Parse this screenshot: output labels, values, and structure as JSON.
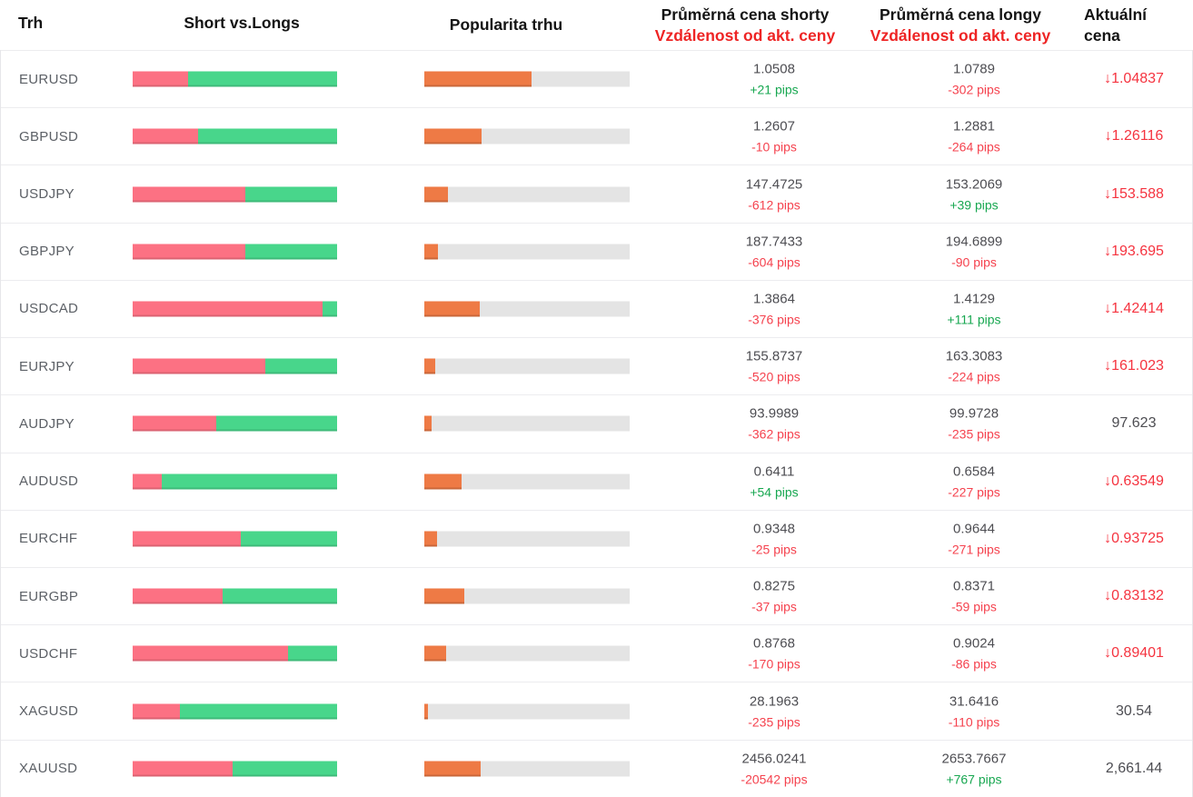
{
  "header": {
    "trh": "Trh",
    "short_vs_longs": "Short vs.Longs",
    "popularity": "Popularita trhu",
    "avg_short_title": "Průměrná cena shorty",
    "avg_short_sub": "Vzdálenost od akt. ceny",
    "avg_long_title": "Průměrná cena longy",
    "avg_long_sub": "Vzdálenost od akt. ceny",
    "current_line1": "Aktuální",
    "current_line2": "cena"
  },
  "icons": {
    "down_arrow": "↓"
  },
  "colors": {
    "short_bar": "#fc7183",
    "long_bar": "#48d68b",
    "popularity_fill": "#ee7a45",
    "popularity_track": "#e4e4e4",
    "pips_positive": "#17a750",
    "pips_negative": "#f5424e",
    "header_red": "#ee2424",
    "price_down_red": "#f5333f",
    "text_dark": "#4d4d52"
  },
  "rows": [
    {
      "pair": "EURUSD",
      "short_pct": 27,
      "popularity_pct": 52,
      "short_price": "1.0508",
      "short_distance": "+21 pips",
      "long_price": "1.0789",
      "long_distance": "-302 pips",
      "current_price": "1.04837",
      "current_direction": "down"
    },
    {
      "pair": "GBPUSD",
      "short_pct": 32,
      "popularity_pct": 28,
      "short_price": "1.2607",
      "short_distance": "-10 pips",
      "long_price": "1.2881",
      "long_distance": "-264 pips",
      "current_price": "1.26116",
      "current_direction": "down"
    },
    {
      "pair": "USDJPY",
      "short_pct": 55,
      "popularity_pct": 11.5,
      "short_price": "147.4725",
      "short_distance": "-612 pips",
      "long_price": "153.2069",
      "long_distance": "+39 pips",
      "current_price": "153.588",
      "current_direction": "down"
    },
    {
      "pair": "GBPJPY",
      "short_pct": 55,
      "popularity_pct": 6.5,
      "short_price": "187.7433",
      "short_distance": "-604 pips",
      "long_price": "194.6899",
      "long_distance": "-90 pips",
      "current_price": "193.695",
      "current_direction": "down"
    },
    {
      "pair": "USDCAD",
      "short_pct": 93,
      "popularity_pct": 27,
      "short_price": "1.3864",
      "short_distance": "-376 pips",
      "long_price": "1.4129",
      "long_distance": "+111 pips",
      "current_price": "1.42414",
      "current_direction": "down"
    },
    {
      "pair": "EURJPY",
      "short_pct": 65,
      "popularity_pct": 5.3,
      "short_price": "155.8737",
      "short_distance": "-520 pips",
      "long_price": "163.3083",
      "long_distance": "-224 pips",
      "current_price": "161.023",
      "current_direction": "down"
    },
    {
      "pair": "AUDJPY",
      "short_pct": 41,
      "popularity_pct": 3.5,
      "short_price": "93.9989",
      "short_distance": "-362 pips",
      "long_price": "99.9728",
      "long_distance": "-235 pips",
      "current_price": "97.623",
      "current_direction": "none"
    },
    {
      "pair": "AUDUSD",
      "short_pct": 14,
      "popularity_pct": 18,
      "short_price": "0.6411",
      "short_distance": "+54 pips",
      "long_price": "0.6584",
      "long_distance": "-227 pips",
      "current_price": "0.63549",
      "current_direction": "down"
    },
    {
      "pair": "EURCHF",
      "short_pct": 53,
      "popularity_pct": 6.2,
      "short_price": "0.9348",
      "short_distance": "-25 pips",
      "long_price": "0.9644",
      "long_distance": "-271 pips",
      "current_price": "0.93725",
      "current_direction": "down"
    },
    {
      "pair": "EURGBP",
      "short_pct": 44,
      "popularity_pct": 19.5,
      "short_price": "0.8275",
      "short_distance": "-37 pips",
      "long_price": "0.8371",
      "long_distance": "-59 pips",
      "current_price": "0.83132",
      "current_direction": "down"
    },
    {
      "pair": "USDCHF",
      "short_pct": 76,
      "popularity_pct": 10.4,
      "short_price": "0.8768",
      "short_distance": "-170 pips",
      "long_price": "0.9024",
      "long_distance": "-86 pips",
      "current_price": "0.89401",
      "current_direction": "down"
    },
    {
      "pair": "XAGUSD",
      "short_pct": 23,
      "popularity_pct": 1.6,
      "short_price": "28.1963",
      "short_distance": "-235 pips",
      "long_price": "31.6416",
      "long_distance": "-110 pips",
      "current_price": "30.54",
      "current_direction": "none"
    },
    {
      "pair": "XAUUSD",
      "short_pct": 49,
      "popularity_pct": 27.3,
      "short_price": "2456.0241",
      "short_distance": "-20542 pips",
      "long_price": "2653.7667",
      "long_distance": "+767 pips",
      "current_price": "2,661.44",
      "current_direction": "none"
    }
  ]
}
